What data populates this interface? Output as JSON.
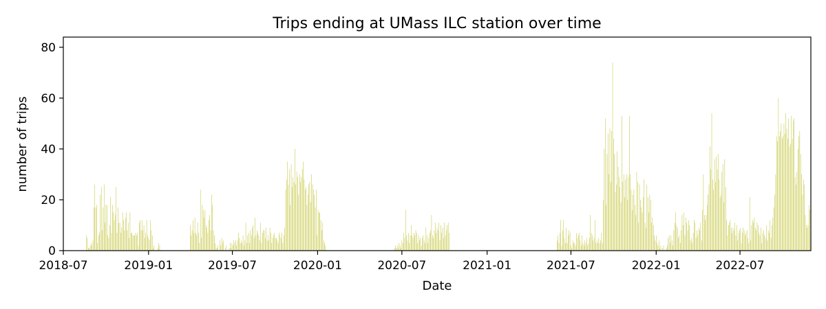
{
  "chart_data": {
    "type": "bar",
    "title": "Trips ending at UMass ILC station over time",
    "xlabel": "Date",
    "ylabel": "number of trips",
    "xlim": [
      "2018-07-01",
      "2022-12-01"
    ],
    "ylim": [
      0,
      84
    ],
    "x_ticks": [
      "2018-07",
      "2019-01",
      "2019-07",
      "2020-01",
      "2020-07",
      "2021-01",
      "2021-07",
      "2022-01",
      "2022-07"
    ],
    "y_ticks": [
      0,
      20,
      40,
      60,
      80
    ],
    "grid": false,
    "legend": "none",
    "bar_color": "#bcbd22",
    "series": [
      {
        "segments": [
          {
            "start": "2018-08-20",
            "values": [
              6,
              5,
              1,
              1,
              2,
              3,
              2,
              4,
              17,
              26,
              17,
              18,
              3,
              6,
              7,
              22,
              25,
              8,
              17,
              26,
              11,
              18,
              18,
              6,
              5,
              10,
              21,
              7,
              18,
              15,
              12,
              14,
              25,
              7,
              17,
              11,
              11,
              7,
              9,
              15,
              12,
              8,
              13,
              15,
              8,
              11,
              5,
              15,
              7,
              7,
              6,
              6,
              6,
              7,
              6,
              7,
              2,
              11,
              12,
              8,
              12,
              8,
              10,
              5,
              7,
              12,
              6,
              5,
              4,
              12,
              8,
              6,
              1,
              2,
              0,
              0,
              0,
              1,
              3,
              2
            ]
          },
          {
            "start": "2019-04-01",
            "values": [
              10,
              6,
              8,
              12,
              7,
              13,
              7,
              6,
              11,
              7,
              3,
              24,
              5,
              18,
              16,
              13,
              16,
              10,
              9,
              7,
              12,
              14,
              8,
              22,
              18,
              8,
              6,
              3,
              1,
              1,
              2,
              0,
              4,
              2,
              5,
              3,
              4,
              0,
              1,
              2,
              0,
              0,
              1,
              3,
              1,
              3,
              2,
              4,
              3,
              4,
              2,
              4,
              7,
              5,
              3,
              4,
              3,
              6,
              2,
              4,
              11,
              3,
              6,
              7,
              3,
              8,
              6,
              9,
              10,
              5,
              13,
              6,
              8,
              7,
              6,
              4,
              11,
              3,
              7,
              8,
              8,
              5,
              9,
              4,
              6,
              4,
              9,
              7,
              3,
              5,
              6,
              7,
              5,
              5,
              4,
              3,
              7,
              6,
              5,
              7,
              3,
              6,
              9,
              24,
              28,
              35,
              26,
              32,
              18,
              34,
              25,
              29,
              27,
              40,
              26,
              31,
              29,
              22,
              30,
              27,
              29,
              32,
              35,
              28,
              24,
              25,
              18,
              22,
              26,
              27,
              19,
              30,
              26,
              24,
              22,
              17,
              24,
              6,
              16,
              15,
              15,
              12,
              8,
              11,
              4,
              3,
              2
            ]
          },
          {
            "start": "2020-06-15",
            "values": [
              1,
              2,
              1,
              2,
              1,
              3,
              2,
              1,
              4,
              3,
              7,
              5,
              16,
              6,
              4,
              7,
              3,
              6,
              10,
              6,
              5,
              7,
              6,
              8,
              7,
              3,
              6,
              4,
              5,
              2,
              5,
              6,
              4,
              3,
              9,
              6,
              3,
              5,
              7,
              8,
              14,
              6,
              5,
              8,
              11,
              7,
              9,
              8,
              11,
              4,
              10,
              7,
              9,
              5,
              11,
              6,
              8,
              10,
              11,
              7
            ]
          },
          {
            "start": "2021-06-01",
            "values": [
              4,
              6,
              3,
              7,
              12,
              2,
              8,
              12,
              5,
              3,
              9,
              3,
              6,
              8,
              7,
              2,
              1,
              4,
              3,
              3,
              2,
              7,
              5,
              6,
              7,
              4,
              2,
              6,
              3,
              2,
              4,
              3,
              5,
              2,
              3,
              5,
              14,
              7,
              6,
              4,
              5,
              12,
              3,
              4,
              3,
              5,
              3,
              4,
              7,
              3,
              20,
              40,
              52,
              18,
              38,
              46,
              30,
              48,
              27,
              47,
              74,
              44,
              38,
              23,
              26,
              39,
              33,
              29,
              25,
              19,
              53,
              27,
              30,
              21,
              28,
              30,
              20,
              29,
              53,
              30,
              24,
              16,
              22,
              24,
              18,
              14,
              31,
              27,
              11,
              26,
              20,
              17,
              15,
              21,
              28,
              11,
              9,
              26,
              21,
              15,
              22,
              20,
              11,
              13,
              10,
              6,
              4,
              6,
              3,
              2,
              4,
              1,
              2,
              0,
              1,
              2,
              0,
              0,
              1,
              2,
              5,
              6,
              3,
              6,
              4,
              2,
              8,
              11,
              15,
              10,
              9,
              5,
              6,
              3,
              8,
              14,
              10,
              15,
              6,
              13,
              11,
              8,
              12,
              10,
              4,
              5,
              3,
              7,
              12,
              11,
              5,
              8,
              6,
              9,
              8,
              11,
              4,
              16,
              30,
              14,
              12,
              14,
              18,
              22,
              26,
              41,
              32,
              54,
              28,
              24,
              36,
              27,
              37,
              32,
              38,
              28,
              21,
              22,
              31,
              34,
              19,
              36,
              25,
              12,
              6,
              10,
              11,
              12,
              9,
              7,
              9,
              8,
              11,
              6,
              10,
              4,
              7,
              8,
              9,
              3,
              7,
              9,
              8,
              6,
              7,
              8,
              5,
              3,
              21,
              4,
              10,
              12,
              11,
              13,
              9,
              8,
              11,
              10,
              7,
              6,
              9,
              3,
              7,
              8,
              6,
              5,
              10,
              4,
              8,
              7,
              12,
              5,
              10,
              13,
              17,
              22,
              30,
              45,
              43,
              60,
              45,
              47,
              50,
              44,
              45,
              50,
              46,
              54,
              48,
              44,
              52,
              41,
              42,
              53,
              44,
              51,
              52,
              29,
              26,
              31,
              40,
              45,
              47,
              38,
              30,
              22,
              28,
              26,
              14,
              10,
              9,
              10,
              18,
              16,
              9
            ]
          }
        ]
      }
    ]
  }
}
